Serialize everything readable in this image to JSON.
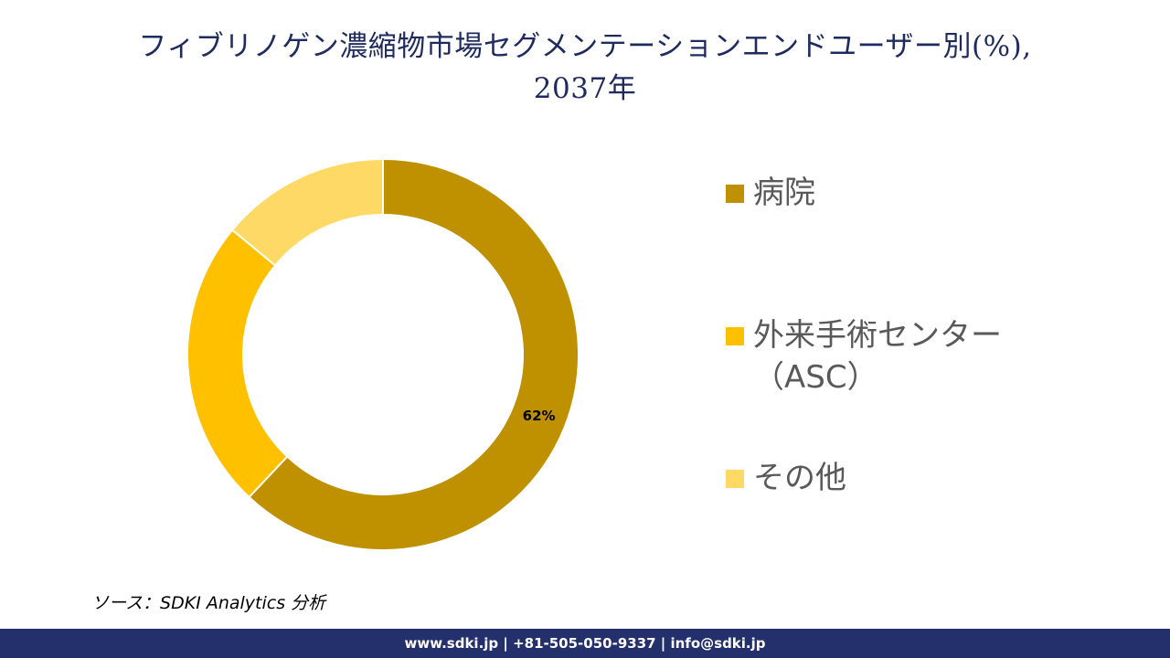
{
  "title_line1": "フィブリノゲン濃縮物市場セグメンテーションエンドユーザー別(%),",
  "title_line2": "2037年",
  "chart_data": {
    "type": "pie",
    "donut": true,
    "categories": [
      "病院",
      "外来手術センター（ASC）",
      "その他"
    ],
    "values": [
      62,
      24,
      14
    ],
    "data_labels": [
      "62%",
      "",
      ""
    ],
    "colors": [
      "#bf9000",
      "#ffc000",
      "#ffd966"
    ],
    "legend_position": "right"
  },
  "legend": {
    "items": [
      {
        "label": "病院",
        "color": "#bf9000"
      },
      {
        "label": "外来手術センター（ASC）",
        "color": "#ffc000"
      },
      {
        "label": "その他",
        "color": "#ffd966"
      }
    ]
  },
  "source": "ソース：SDKI Analytics 分析",
  "footer": "www.sdki.jp | +81-505-050-9337 | info@sdki.jp"
}
